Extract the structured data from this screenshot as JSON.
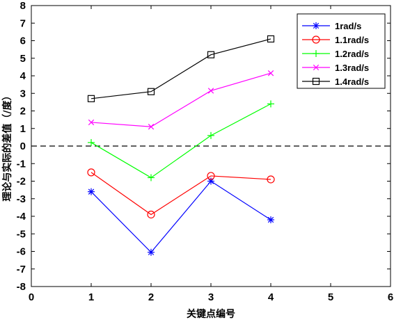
{
  "chart_data": {
    "type": "line",
    "title": "",
    "xlabel": "关键点编号",
    "ylabel": "理论与实际的差值（/度）",
    "xlim": [
      0,
      6
    ],
    "ylim": [
      -8,
      8
    ],
    "x_ticks": [
      0,
      1,
      2,
      3,
      4,
      5,
      6
    ],
    "y_ticks": [
      -8,
      -7,
      -6,
      -5,
      -4,
      -3,
      -2,
      -1,
      0,
      1,
      2,
      3,
      4,
      5,
      6,
      7,
      8
    ],
    "grid": false,
    "legend_position": "top-right",
    "reference_line": {
      "y": 0,
      "style": "dashed",
      "color": "#000000"
    },
    "x": [
      1,
      2,
      3,
      4
    ],
    "series": [
      {
        "name": "1rad/s",
        "color": "#0000ff",
        "marker": "asterisk",
        "values": [
          -2.6,
          -6.05,
          -2.0,
          -4.2
        ]
      },
      {
        "name": "1.1rad/s",
        "color": "#ff0000",
        "marker": "circle",
        "values": [
          -1.5,
          -3.9,
          -1.7,
          -1.9
        ]
      },
      {
        "name": "1.2rad/s",
        "color": "#00ff00",
        "marker": "plus",
        "values": [
          0.2,
          -1.8,
          0.6,
          2.4
        ]
      },
      {
        "name": "1.3rad/s",
        "color": "#ff00ff",
        "marker": "x",
        "values": [
          1.35,
          1.1,
          3.15,
          4.15
        ]
      },
      {
        "name": "1.4rad/s",
        "color": "#000000",
        "marker": "square",
        "values": [
          2.7,
          3.1,
          5.2,
          6.1
        ]
      }
    ]
  }
}
